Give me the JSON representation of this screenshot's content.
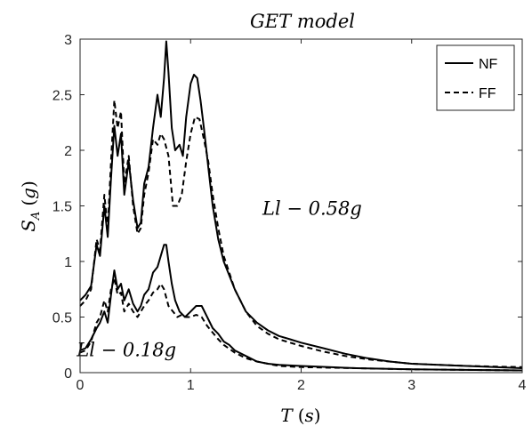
{
  "chart_data": {
    "type": "line",
    "title": "GET model",
    "xlabel": "T (s)",
    "ylabel": "S_A (g)",
    "xlim": [
      0,
      4
    ],
    "ylim": [
      0,
      3
    ],
    "xticks": [
      "0",
      "1",
      "2",
      "3",
      "4"
    ],
    "yticks": [
      "0",
      "0.5",
      "1",
      "1.5",
      "2",
      "2.5",
      "3"
    ],
    "legend": {
      "position": "top-right",
      "entries": [
        "NF",
        "FF"
      ]
    },
    "annotations": [
      {
        "text": "Ll − 0.58g",
        "x": 2.1,
        "y": 1.42
      },
      {
        "text": "Ll − 0.18g",
        "x": 0.42,
        "y": 0.15
      }
    ],
    "series": [
      {
        "name": "NF",
        "group": "Ll - 0.58g",
        "style": "solid",
        "x": [
          0,
          0.05,
          0.1,
          0.15,
          0.18,
          0.22,
          0.25,
          0.28,
          0.31,
          0.34,
          0.37,
          0.4,
          0.44,
          0.48,
          0.52,
          0.55,
          0.58,
          0.62,
          0.66,
          0.7,
          0.73,
          0.76,
          0.78,
          0.8,
          0.83,
          0.86,
          0.9,
          0.93,
          0.96,
          1.0,
          1.03,
          1.06,
          1.09,
          1.12,
          1.16,
          1.2,
          1.25,
          1.3,
          1.4,
          1.5,
          1.6,
          1.7,
          1.8,
          1.9,
          2.0,
          2.2,
          2.4,
          2.6,
          2.8,
          3.0,
          3.5,
          4.0
        ],
        "y": [
          0.65,
          0.7,
          0.78,
          1.15,
          1.05,
          1.5,
          1.22,
          1.75,
          2.22,
          1.95,
          2.15,
          1.6,
          1.9,
          1.55,
          1.3,
          1.35,
          1.7,
          1.85,
          2.2,
          2.5,
          2.3,
          2.65,
          2.98,
          2.7,
          2.2,
          2.0,
          2.05,
          1.95,
          2.3,
          2.6,
          2.68,
          2.65,
          2.45,
          2.2,
          1.85,
          1.5,
          1.2,
          1.0,
          0.75,
          0.55,
          0.45,
          0.38,
          0.33,
          0.3,
          0.27,
          0.22,
          0.17,
          0.13,
          0.1,
          0.08,
          0.06,
          0.04
        ]
      },
      {
        "name": "FF",
        "group": "Ll - 0.58g",
        "style": "dashed",
        "x": [
          0,
          0.05,
          0.1,
          0.15,
          0.18,
          0.22,
          0.25,
          0.28,
          0.31,
          0.34,
          0.37,
          0.4,
          0.44,
          0.48,
          0.52,
          0.55,
          0.58,
          0.62,
          0.66,
          0.7,
          0.73,
          0.76,
          0.8,
          0.84,
          0.88,
          0.92,
          0.96,
          1.0,
          1.04,
          1.08,
          1.12,
          1.16,
          1.2,
          1.25,
          1.3,
          1.4,
          1.5,
          1.6,
          1.7,
          1.8,
          2.0,
          2.2,
          2.4,
          2.6,
          2.8,
          3.0,
          3.5,
          4.0
        ],
        "y": [
          0.6,
          0.65,
          0.75,
          1.2,
          1.1,
          1.6,
          1.3,
          1.9,
          2.45,
          2.2,
          2.35,
          1.7,
          1.95,
          1.5,
          1.25,
          1.3,
          1.6,
          1.8,
          2.1,
          2.05,
          2.15,
          2.1,
          1.95,
          1.5,
          1.5,
          1.6,
          1.9,
          2.15,
          2.3,
          2.28,
          2.1,
          1.9,
          1.6,
          1.3,
          1.05,
          0.75,
          0.55,
          0.42,
          0.35,
          0.3,
          0.24,
          0.19,
          0.15,
          0.12,
          0.1,
          0.08,
          0.06,
          0.05
        ]
      },
      {
        "name": "NF",
        "group": "Ll - 0.18g",
        "style": "solid",
        "x": [
          0,
          0.05,
          0.1,
          0.15,
          0.18,
          0.22,
          0.25,
          0.28,
          0.31,
          0.34,
          0.37,
          0.4,
          0.44,
          0.48,
          0.52,
          0.55,
          0.58,
          0.62,
          0.66,
          0.7,
          0.73,
          0.76,
          0.78,
          0.8,
          0.83,
          0.86,
          0.9,
          0.95,
          1.0,
          1.05,
          1.1,
          1.15,
          1.2,
          1.25,
          1.3,
          1.35,
          1.4,
          1.5,
          1.6,
          1.7,
          1.8,
          2.0,
          2.5,
          3.0,
          4.0
        ],
        "y": [
          0.2,
          0.22,
          0.3,
          0.4,
          0.45,
          0.55,
          0.45,
          0.7,
          0.92,
          0.75,
          0.8,
          0.65,
          0.75,
          0.62,
          0.55,
          0.6,
          0.7,
          0.75,
          0.9,
          0.95,
          1.05,
          1.15,
          1.15,
          1.0,
          0.8,
          0.65,
          0.55,
          0.5,
          0.55,
          0.6,
          0.6,
          0.5,
          0.4,
          0.35,
          0.28,
          0.25,
          0.2,
          0.15,
          0.1,
          0.08,
          0.07,
          0.06,
          0.04,
          0.03,
          0.02
        ]
      },
      {
        "name": "FF",
        "group": "Ll - 0.18g",
        "style": "dashed",
        "x": [
          0,
          0.05,
          0.1,
          0.15,
          0.18,
          0.22,
          0.25,
          0.28,
          0.31,
          0.34,
          0.37,
          0.4,
          0.44,
          0.48,
          0.52,
          0.55,
          0.58,
          0.62,
          0.66,
          0.7,
          0.73,
          0.76,
          0.8,
          0.84,
          0.88,
          0.92,
          0.96,
          1.0,
          1.05,
          1.1,
          1.15,
          1.2,
          1.25,
          1.3,
          1.4,
          1.5,
          1.6,
          1.7,
          1.8,
          2.0,
          2.5,
          3.0,
          4.0
        ],
        "y": [
          0.18,
          0.2,
          0.28,
          0.45,
          0.5,
          0.65,
          0.55,
          0.75,
          0.85,
          0.7,
          0.72,
          0.55,
          0.62,
          0.55,
          0.5,
          0.55,
          0.6,
          0.65,
          0.72,
          0.75,
          0.8,
          0.75,
          0.6,
          0.55,
          0.5,
          0.52,
          0.5,
          0.5,
          0.52,
          0.5,
          0.42,
          0.36,
          0.3,
          0.25,
          0.18,
          0.13,
          0.1,
          0.08,
          0.06,
          0.05,
          0.04,
          0.03,
          0.02
        ]
      }
    ]
  }
}
